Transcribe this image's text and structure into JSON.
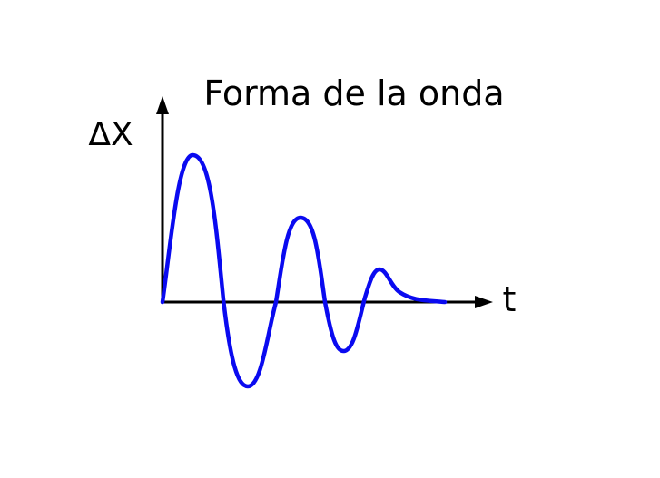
{
  "diagram": {
    "title": "Forma de la onda",
    "y_axis_label": "ΔX",
    "x_axis_label": "t",
    "wave_color": "#0a0af0",
    "axis_color": "#000000",
    "wave_description_type": "damped-oscillation"
  }
}
